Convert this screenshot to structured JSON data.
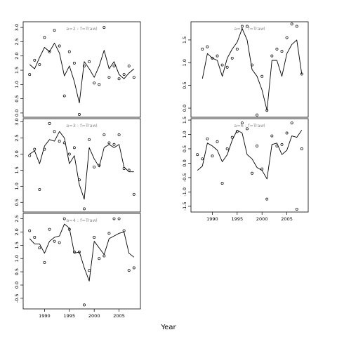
{
  "chart_data": {
    "type": "scatter",
    "xlabel": "Year",
    "x_tick_labels": [
      "1990",
      "1995",
      "2000",
      "2005"
    ],
    "colors": {
      "line": "#000000",
      "points": "#000000",
      "label": "#8c8c8c"
    },
    "panels": [
      {
        "label": "a=2  :  f=Trawl",
        "y_ticks": [
          0.0,
          0.5,
          1.0,
          1.5,
          2.0,
          2.5,
          3.0
        ],
        "y_tick_labels": [
          "0.0",
          "0.5",
          "1.0",
          "1.5",
          "2.0",
          "2.5",
          "3.0"
        ],
        "ylim": [
          -0.15,
          3.2
        ],
        "x": [
          1987,
          1988,
          1989,
          1990,
          1991,
          1992,
          1993,
          1994,
          1995,
          1996,
          1997,
          1998,
          1999,
          2000,
          2001,
          2002,
          2003,
          2004,
          2005,
          2006,
          2007,
          2008
        ],
        "points": [
          1.35,
          1.85,
          1.7,
          2.65,
          2.15,
          2.9,
          2.35,
          0.6,
          2.15,
          1.75,
          -0.05,
          1.65,
          1.8,
          1.05,
          1.0,
          3.0,
          1.25,
          1.65,
          1.2,
          1.35,
          1.65,
          1.25
        ],
        "fitted": [
          1.7,
          1.55,
          1.95,
          2.3,
          2.15,
          2.45,
          2.1,
          1.3,
          1.65,
          1.1,
          0.35,
          1.8,
          1.55,
          1.25,
          1.65,
          2.2,
          1.55,
          1.8,
          1.35,
          1.2,
          1.4,
          1.55
        ]
      },
      {
        "label": "a=3  :  f=Trawl",
        "y_ticks": [
          0.5,
          1.0,
          1.5,
          2.0,
          2.5,
          3.0
        ],
        "y_tick_labels": [
          "0.5",
          "1.0",
          "1.5",
          "2.0",
          "2.5",
          "3.0"
        ],
        "ylim": [
          0.2,
          3.1
        ],
        "x": [
          1987,
          1988,
          1989,
          1990,
          1991,
          1992,
          1993,
          1994,
          1995,
          1996,
          1997,
          1998,
          1999,
          2000,
          2001,
          2002,
          2003,
          2004,
          2005,
          2006,
          2007,
          2008
        ],
        "points": [
          1.95,
          2.15,
          0.9,
          2.15,
          2.95,
          2.7,
          2.4,
          2.35,
          2.0,
          2.2,
          1.2,
          0.3,
          2.45,
          1.6,
          1.65,
          2.6,
          2.35,
          2.3,
          2.6,
          1.55,
          1.5,
          0.75
        ],
        "fitted": [
          2.0,
          2.1,
          1.7,
          2.25,
          2.45,
          2.4,
          2.7,
          2.5,
          1.7,
          1.95,
          1.05,
          0.6,
          2.2,
          1.85,
          1.6,
          2.2,
          2.3,
          2.2,
          2.3,
          1.6,
          1.45,
          1.45
        ]
      },
      {
        "label": "a=4  :  f=Trawl",
        "y_ticks": [
          -0.5,
          0.0,
          0.5,
          1.0,
          1.5,
          2.0,
          2.5
        ],
        "y_tick_labels": [
          "-0.5",
          "0.0",
          "0.5",
          "1.0",
          "1.5",
          "2.0",
          "2.5"
        ],
        "ylim": [
          -0.9,
          2.7
        ],
        "x": [
          1987,
          1988,
          1989,
          1990,
          1991,
          1992,
          1993,
          1994,
          1995,
          1996,
          1997,
          1998,
          1999,
          2000,
          2001,
          2002,
          2003,
          2004,
          2005,
          2006,
          2007,
          2008
        ],
        "points": [
          2.05,
          1.8,
          1.4,
          0.85,
          2.1,
          1.65,
          1.6,
          2.5,
          2.1,
          1.25,
          1.25,
          -0.75,
          0.55,
          1.8,
          1.0,
          1.1,
          1.95,
          2.5,
          2.5,
          2.05,
          0.55,
          0.65
        ],
        "fitted": [
          1.75,
          1.55,
          1.55,
          1.2,
          1.65,
          1.8,
          1.85,
          2.3,
          2.15,
          1.2,
          1.25,
          0.65,
          0.15,
          1.65,
          1.4,
          1.15,
          1.75,
          1.85,
          1.95,
          2.0,
          1.2,
          1.05
        ]
      },
      {
        "label": "a=5  :  f=Trawl",
        "y_ticks": [
          0.0,
          0.5,
          1.0,
          1.5
        ],
        "y_tick_labels": [
          "0.0",
          "0.5",
          "1.0",
          "1.5"
        ],
        "ylim": [
          -0.2,
          1.9
        ],
        "x": [
          1988,
          1989,
          1990,
          1991,
          1992,
          1993,
          1994,
          1995,
          1996,
          1997,
          1998,
          1999,
          2000,
          2001,
          2002,
          2003,
          2004,
          2005,
          2006,
          2007,
          2008
        ],
        "points": [
          1.3,
          1.35,
          1.1,
          1.15,
          0.95,
          0.9,
          1.1,
          1.3,
          1.8,
          1.8,
          0.95,
          -0.15,
          0.7,
          -0.05,
          1.15,
          1.3,
          1.25,
          1.55,
          1.85,
          1.8,
          0.75
        ],
        "fitted": [
          0.65,
          1.2,
          1.1,
          1.05,
          0.7,
          1.1,
          1.3,
          1.45,
          1.75,
          1.5,
          0.85,
          0.7,
          0.4,
          -0.05,
          1.05,
          1.05,
          0.7,
          1.2,
          1.4,
          1.5,
          0.75
        ]
      },
      {
        "label": "a=6  :  f=Trawl",
        "y_ticks": [
          -1.5,
          -1.0,
          -0.5,
          0.0,
          0.5,
          1.0,
          1.5
        ],
        "y_tick_labels": [
          "-1.5",
          "-1.0",
          "-0.5",
          "0.0",
          "0.5",
          "1.0",
          "1.5"
        ],
        "ylim": [
          -1.7,
          1.55
        ],
        "x": [
          1987,
          1988,
          1989,
          1990,
          1991,
          1992,
          1993,
          1994,
          1995,
          1996,
          1997,
          1998,
          1999,
          2000,
          2001,
          2002,
          2003,
          2004,
          2005,
          2006,
          2007,
          2008
        ],
        "points": [
          0.3,
          0.15,
          0.85,
          0.25,
          0.75,
          -0.7,
          0.5,
          0.9,
          1.1,
          1.4,
          1.2,
          -0.35,
          0.6,
          -0.2,
          -1.25,
          0.95,
          0.6,
          0.65,
          1.05,
          1.4,
          -1.6,
          0.5
        ],
        "fitted": [
          -0.25,
          -0.1,
          0.7,
          0.6,
          0.45,
          0.05,
          0.3,
          0.8,
          1.15,
          1.05,
          0.3,
          0.15,
          -0.15,
          -0.25,
          -0.55,
          0.65,
          0.7,
          0.3,
          0.45,
          0.95,
          0.9,
          1.15
        ]
      }
    ]
  }
}
